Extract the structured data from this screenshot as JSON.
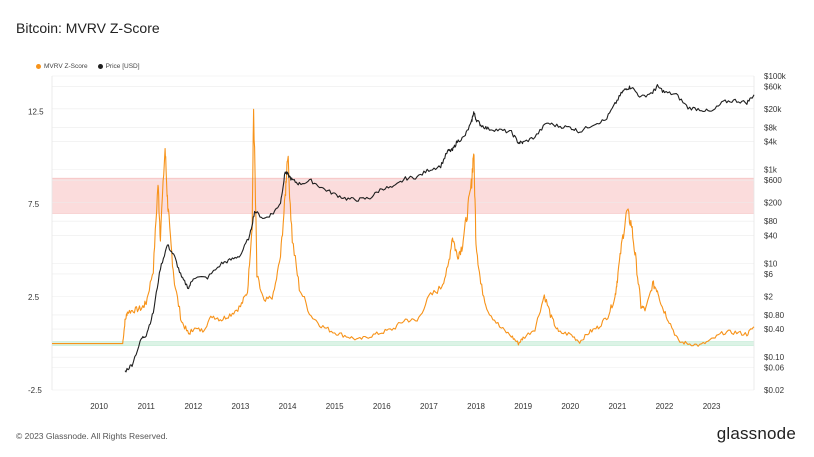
{
  "header": {
    "title": "Bitcoin: MVRV Z-Score"
  },
  "footer": {
    "copyright": "© 2023 Glassnode. All Rights Reserved.",
    "brand": "glassnode"
  },
  "colors": {
    "zscore": "#f7931a",
    "price": "#1f1f1f",
    "red_band": "#fbdcdc",
    "green_band": "#dcf3e6"
  },
  "chart_data": {
    "type": "line",
    "title": "Bitcoin: MVRV Z-Score",
    "legend": {
      "placement": "top-left",
      "items": [
        "MVRV Z-Score",
        "Price [USD]"
      ]
    },
    "x_ticks": [
      "2010",
      "2011",
      "2012",
      "2013",
      "2014",
      "2015",
      "2016",
      "2017",
      "2018",
      "2019",
      "2020",
      "2021",
      "2022",
      "2023"
    ],
    "xlim": [
      2009.0,
      2023.9
    ],
    "left_axis": {
      "ticks": [
        "12.5",
        "7.5",
        "2.5",
        "-2.5"
      ],
      "values": [
        12.5,
        7.5,
        2.5,
        -2.5
      ],
      "ylim": [
        -2.5,
        14.4
      ]
    },
    "right_axis": {
      "scale": "log",
      "ticks": [
        "$100k",
        "$60k",
        "$20k",
        "$8k",
        "$4k",
        "$1k",
        "$600",
        "$200",
        "$80",
        "$40",
        "$10",
        "$6",
        "$2",
        "$0.80",
        "$0.40",
        "$0.10",
        "$0.06",
        "$0.02"
      ],
      "values": [
        100000,
        60000,
        20000,
        8000,
        4000,
        1000,
        600,
        200,
        80,
        40,
        10,
        6,
        2,
        0.8,
        0.4,
        0.1,
        0.06,
        0.02
      ],
      "ylim": [
        0.02,
        100000
      ]
    },
    "bands": [
      {
        "color": "red",
        "from": 7.0,
        "to": 8.9
      },
      {
        "color": "green",
        "from": -0.1,
        "to": 0.1
      }
    ],
    "grid": true,
    "series": [
      {
        "name": "MVRV Z-Score",
        "axis": "left",
        "x": [
          2009.0,
          2010.5,
          2010.55,
          2010.6,
          2010.75,
          2010.9,
          2011.0,
          2011.15,
          2011.25,
          2011.3,
          2011.4,
          2011.45,
          2011.5,
          2011.6,
          2011.75,
          2011.9,
          2012.0,
          2012.2,
          2012.4,
          2012.6,
          2012.8,
          2013.0,
          2013.15,
          2013.25,
          2013.28,
          2013.35,
          2013.5,
          2013.7,
          2013.85,
          2013.95,
          2014.0,
          2014.1,
          2014.25,
          2014.5,
          2014.75,
          2015.0,
          2015.25,
          2015.5,
          2015.75,
          2016.0,
          2016.25,
          2016.5,
          2016.75,
          2017.0,
          2017.25,
          2017.4,
          2017.5,
          2017.6,
          2017.7,
          2017.8,
          2017.9,
          2017.95,
          2018.0,
          2018.1,
          2018.25,
          2018.5,
          2018.75,
          2018.9,
          2019.0,
          2019.25,
          2019.45,
          2019.6,
          2019.75,
          2020.0,
          2020.2,
          2020.4,
          2020.6,
          2020.8,
          2020.95,
          2021.0,
          2021.1,
          2021.2,
          2021.3,
          2021.4,
          2021.5,
          2021.6,
          2021.75,
          2021.85,
          2021.95,
          2022.1,
          2022.3,
          2022.5,
          2022.75,
          2023.0,
          2023.25,
          2023.5,
          2023.75,
          2023.9
        ],
        "y": [
          0.0,
          0.0,
          1.2,
          1.7,
          1.8,
          1.9,
          2.2,
          4.0,
          8.6,
          5.8,
          10.5,
          7.8,
          6.0,
          3.3,
          1.2,
          0.5,
          0.8,
          0.7,
          1.5,
          1.3,
          1.6,
          2.0,
          2.8,
          6.5,
          12.7,
          3.6,
          2.2,
          2.6,
          4.7,
          7.9,
          10.3,
          5.6,
          3.0,
          1.5,
          0.9,
          0.6,
          0.4,
          0.2,
          0.4,
          0.6,
          0.8,
          1.3,
          1.2,
          2.5,
          3.0,
          4.0,
          5.8,
          4.7,
          5.2,
          6.8,
          8.5,
          10.4,
          5.5,
          3.2,
          1.8,
          0.9,
          0.4,
          0.0,
          0.3,
          0.8,
          2.6,
          1.4,
          0.6,
          0.5,
          0.1,
          0.6,
          0.9,
          1.5,
          2.5,
          3.5,
          5.5,
          7.1,
          6.4,
          4.3,
          2.0,
          1.8,
          3.2,
          2.9,
          2.0,
          1.2,
          0.1,
          0.0,
          -0.1,
          0.2,
          0.6,
          0.6,
          0.5,
          0.9
        ]
      },
      {
        "name": "Price [USD]",
        "axis": "right",
        "x": [
          2010.55,
          2010.7,
          2010.9,
          2011.0,
          2011.15,
          2011.3,
          2011.45,
          2011.6,
          2011.75,
          2011.9,
          2012.0,
          2012.3,
          2012.6,
          2012.8,
          2013.0,
          2013.2,
          2013.3,
          2013.5,
          2013.7,
          2013.85,
          2013.95,
          2014.0,
          2014.1,
          2014.25,
          2014.5,
          2014.75,
          2015.0,
          2015.25,
          2015.5,
          2015.75,
          2016.0,
          2016.25,
          2016.5,
          2016.75,
          2017.0,
          2017.25,
          2017.4,
          2017.5,
          2017.6,
          2017.75,
          2017.9,
          2017.95,
          2018.0,
          2018.1,
          2018.25,
          2018.5,
          2018.75,
          2018.9,
          2019.0,
          2019.25,
          2019.5,
          2019.75,
          2020.0,
          2020.2,
          2020.5,
          2020.75,
          2020.95,
          2021.1,
          2021.2,
          2021.3,
          2021.5,
          2021.75,
          2021.85,
          2022.0,
          2022.25,
          2022.5,
          2022.75,
          2023.0,
          2023.25,
          2023.5,
          2023.75,
          2023.9
        ],
        "y": [
          0.05,
          0.07,
          0.25,
          0.3,
          0.9,
          8.0,
          25,
          14,
          5,
          3,
          5,
          5,
          10,
          12,
          15,
          40,
          130,
          90,
          120,
          200,
          900,
          800,
          600,
          500,
          580,
          400,
          300,
          240,
          230,
          250,
          400,
          420,
          650,
          700,
          1000,
          1200,
          2500,
          2600,
          4000,
          5000,
          10000,
          17000,
          12000,
          9000,
          7500,
          7000,
          6300,
          3800,
          3800,
          5000,
          10000,
          8500,
          8000,
          6500,
          9500,
          11500,
          25000,
          45000,
          55000,
          58000,
          35000,
          45000,
          60000,
          45000,
          40000,
          21000,
          19500,
          17000,
          28000,
          30000,
          27000,
          40000
        ]
      }
    ]
  }
}
